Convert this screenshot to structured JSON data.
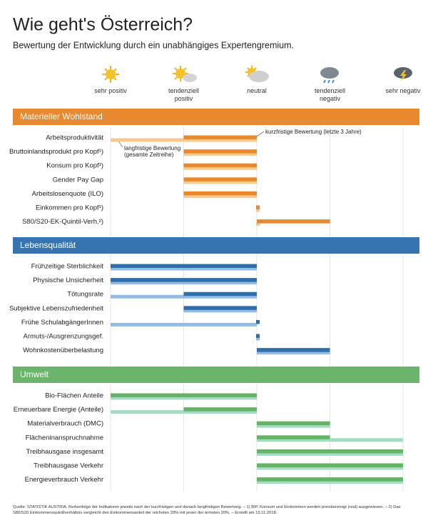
{
  "chart_data": {
    "type": "bar",
    "title": "Wie geht's Österreich?",
    "subtitle": "Bewertung der Entwicklung durch ein unabhängiges Expertengremium.",
    "xlim": [
      -2,
      2
    ],
    "xticks": [
      {
        "value": -2,
        "label": "sehr positiv"
      },
      {
        "value": -1,
        "label": "tendenziell positiv"
      },
      {
        "value": 0,
        "label": "neutral"
      },
      {
        "value": 1,
        "label": "tendenziell negativ"
      },
      {
        "value": 2,
        "label": "sehr negativ"
      }
    ],
    "grid": true,
    "annotations": [
      "kurzfristige Bewertung (letzte 3 Jahre)",
      "langfristige Bewertung (gesamte Zeitreihe)"
    ],
    "sections": [
      {
        "title": "Materieller Wohlstand",
        "color": "#e8892f",
        "categories": [
          "Arbeitsproduktivität",
          "Bruttoinlandsprodukt pro Kopf¹)",
          "Konsum pro Kopf¹)",
          "Gender Pay Gap",
          "Arbeitslosenquote (ILO)",
          "Einkommen pro Kopf¹)",
          "S80/S20-EK-Quintil-Verh.²)"
        ],
        "series": [
          {
            "color": "#e8892f",
            "values": [
              -1,
              -1,
              -1,
              -1,
              -1,
              0,
              1
            ]
          },
          {
            "color": "#f6c98c",
            "values": [
              -2,
              -1,
              -1,
              -1,
              -1,
              0,
              0
            ]
          }
        ]
      },
      {
        "title": "Lebensqualität",
        "color": "#3574b0",
        "categories": [
          "Frühzeitige Sterblichkeit",
          "Physische Unsicherheit",
          "Tötungsrate",
          "Subjektive Lebenszufriedenheit",
          "Frühe SchulabgängerInnen",
          "Armuts-/Ausgrenzungsgef.",
          "Wohnkostenüberbelastung"
        ],
        "series": [
          {
            "color": "#2f6ea8",
            "values": [
              -2,
              -2,
              -1,
              -1,
              0,
              0,
              1
            ]
          },
          {
            "color": "#92bce4",
            "values": [
              -2,
              -2,
              -2,
              -1,
              -2,
              0,
              1
            ]
          }
        ]
      },
      {
        "title": "Umwelt",
        "color": "#6cb36c",
        "categories": [
          "Bio-Flächen Anteile",
          "Erneuerbare Energie (Anteile)",
          "Materialverbrauch (DMC)",
          "Flächeninanspruchnahme",
          "Treibhausgase insgesamt",
          "Treibhausgase Verkehr",
          "Energieverbrauch Verkehr"
        ],
        "series": [
          {
            "color": "#66b266",
            "values": [
              -2,
              -1,
              1,
              1,
              2,
              2,
              2
            ]
          },
          {
            "color": "#a3dcc2",
            "values": [
              -2,
              -2,
              1,
              2,
              2,
              2,
              2
            ]
          }
        ]
      }
    ],
    "source": "Quelle: STATISTIK AUSTRIA. Reihenfolge der Indikatoren jeweils nach der kurzfristigen und danach langfristigen Bewertung. – 1) BIP, Konsum und Einkommen werden preisbereinigt (real) ausgewiesen. – 2) Das S80/S20 Einkommensquintilverhältnis vergleicht den Einkommensanteil der reichsten 20% mit jenen der ärmsten 20%. – Erstellt am 13.11.2018."
  }
}
